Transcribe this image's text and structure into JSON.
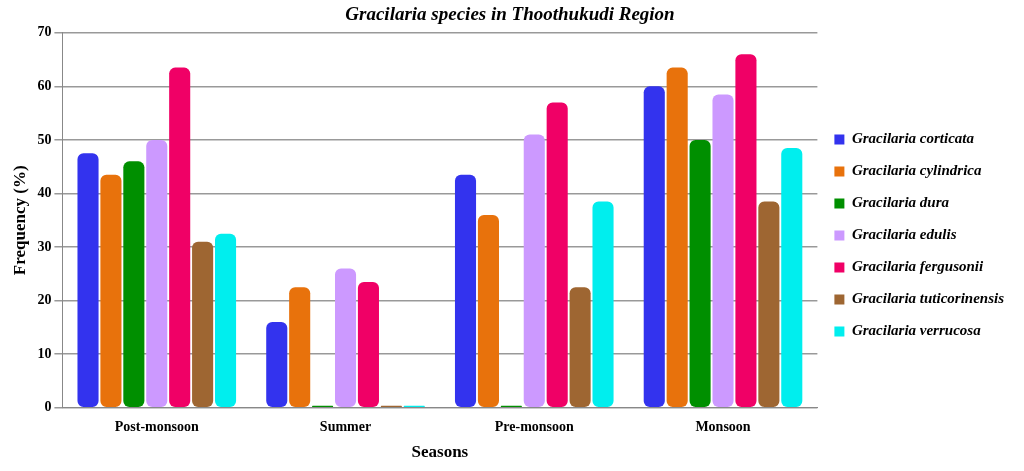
{
  "chart_data": {
    "type": "bar",
    "title": "Gracilaria species in Thoothukudi Region",
    "xlabel": "Seasons",
    "ylabel": "Frequency (%)",
    "categories": [
      "Post-monsoon",
      "Summer",
      "Pre-monsoon",
      "Monsoon"
    ],
    "series": [
      {
        "name": "Gracilaria corticata",
        "color": "#3333ee",
        "values": [
          47.5,
          16,
          43.5,
          60
        ]
      },
      {
        "name": "Gracilaria cylindrica",
        "color": "#e8720c",
        "values": [
          43.5,
          22.5,
          36,
          63.5
        ]
      },
      {
        "name": "Gracilaria dura",
        "color": "#008f00",
        "values": [
          46,
          0,
          0,
          50
        ]
      },
      {
        "name": "Gracilaria edulis",
        "color": "#cc99ff",
        "values": [
          50,
          26,
          51,
          58.5
        ]
      },
      {
        "name": "Gracilaria fergusonii",
        "color": "#f00066",
        "values": [
          63.5,
          23.5,
          57,
          66
        ]
      },
      {
        "name": "Gracilaria tuticorinensis",
        "color": "#9e6632",
        "values": [
          31,
          0,
          22.5,
          38.5
        ]
      },
      {
        "name": "Gracilaria verrucosa",
        "color": "#00eeee",
        "values": [
          32.5,
          0,
          38.5,
          48.5
        ]
      }
    ],
    "ylim": [
      0,
      70
    ],
    "yticks": [
      0,
      10,
      20,
      30,
      40,
      50,
      60,
      70
    ],
    "grid": "y",
    "legend": "right"
  }
}
